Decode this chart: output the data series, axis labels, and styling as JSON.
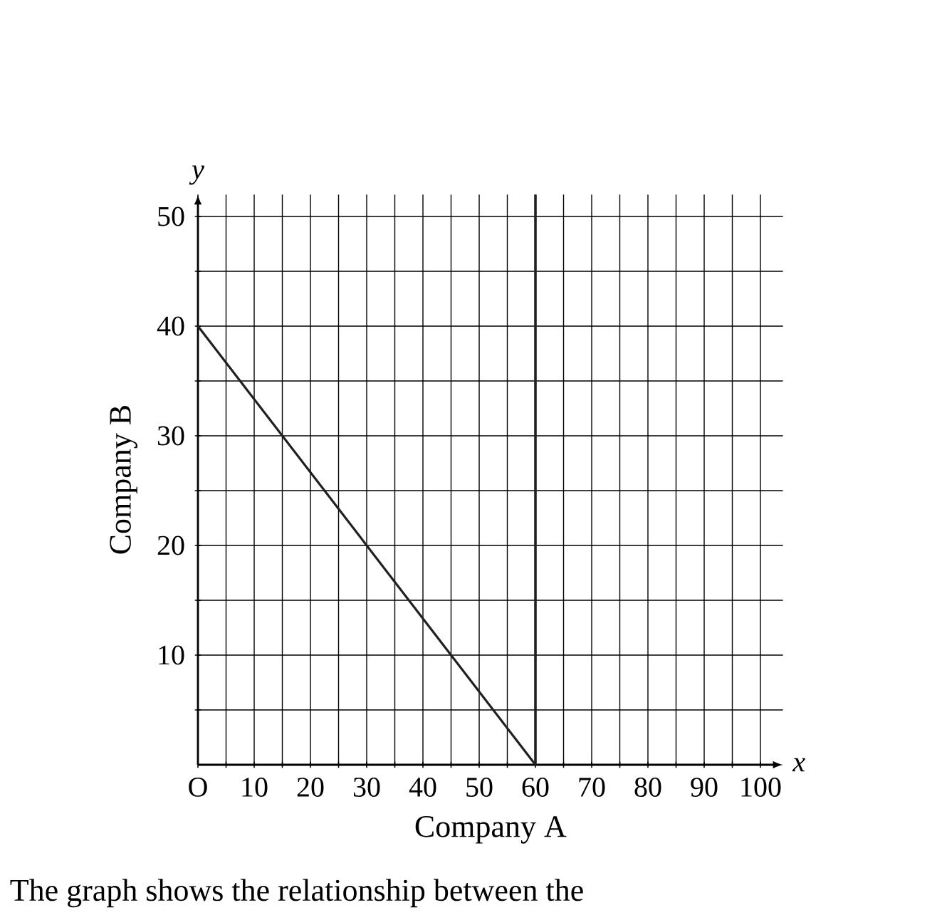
{
  "chart_data": {
    "type": "line",
    "xlabel": "Company A",
    "ylabel": "Company B",
    "x": [
      0,
      60
    ],
    "series": [
      {
        "color": "#231f20",
        "values": [
          40,
          0
        ]
      }
    ],
    "xlim": [
      0,
      104
    ],
    "ylim": [
      0,
      52
    ],
    "xticks": [
      {
        "value": 0,
        "label": "O"
      },
      {
        "value": 5,
        "label": null
      },
      10,
      {
        "value": 15,
        "label": null
      },
      20,
      {
        "value": 25,
        "label": null
      },
      30,
      {
        "value": 35,
        "label": null
      },
      40,
      {
        "value": 45,
        "label": null
      },
      50,
      {
        "value": 55,
        "label": null
      },
      60,
      {
        "value": 65,
        "label": null
      },
      70,
      {
        "value": 75,
        "label": null
      },
      80,
      {
        "value": 85,
        "label": null
      },
      90,
      {
        "value": 95,
        "label": null
      },
      100
    ],
    "yticks": [
      {
        "value": 5,
        "label": null
      },
      10,
      {
        "value": 15,
        "label": null
      },
      20,
      {
        "value": 25,
        "label": null
      },
      30,
      {
        "value": 35,
        "label": null
      },
      40,
      {
        "value": 45,
        "label": null
      },
      50
    ],
    "grid": true,
    "marker": "none",
    "line_style": "solid",
    "ref_lines": [
      {
        "axis": "x",
        "value": 60,
        "color": "#231f20"
      }
    ],
    "annotations": [
      "x",
      "y",
      "The graph shows the relationship between the"
    ]
  }
}
